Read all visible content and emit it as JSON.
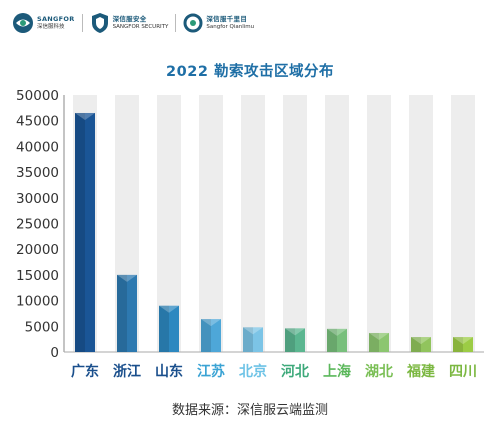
{
  "brand": {
    "logos": [
      {
        "main": "SANGFOR",
        "sub": "深信服科技"
      },
      {
        "main": "深信服安全",
        "sub": "SANGFOR SECURITY"
      },
      {
        "main": "深信服千里目",
        "sub": "Sangfor Qianlimu"
      }
    ]
  },
  "source_note": "数据来源：深信服云端监测",
  "chart_data": {
    "type": "bar",
    "title": "2022 勒索攻击区域分布",
    "categories": [
      "广东",
      "浙江",
      "山东",
      "江苏",
      "北京",
      "河北",
      "上海",
      "湖北",
      "福建",
      "四川"
    ],
    "values": [
      46500,
      15000,
      9000,
      6400,
      4800,
      4600,
      4500,
      3700,
      2900,
      2900
    ],
    "yticks": [
      "0",
      "5000",
      "10000",
      "15000",
      "20000",
      "25000",
      "30000",
      "35000",
      "40000",
      "45000",
      "50000"
    ],
    "ylim": [
      0,
      50000
    ],
    "xlabel": "",
    "ylabel": "",
    "colors": {
      "bars": [
        "#1a5596",
        "#2d79b0",
        "#2d88c0",
        "#4ea7d8",
        "#7cc4e6",
        "#5bb690",
        "#78bf7c",
        "#8cc670",
        "#91c45d",
        "#9ccc45"
      ],
      "labels": [
        "#1a4f8c",
        "#1a4f8c",
        "#1a4f8c",
        "#3aa3d4",
        "#6ec3e6",
        "#3da97a",
        "#5cb85c",
        "#7abf55",
        "#7cb842",
        "#7cb842"
      ],
      "ticks": "#333333",
      "column_bg": "#ededed"
    }
  }
}
